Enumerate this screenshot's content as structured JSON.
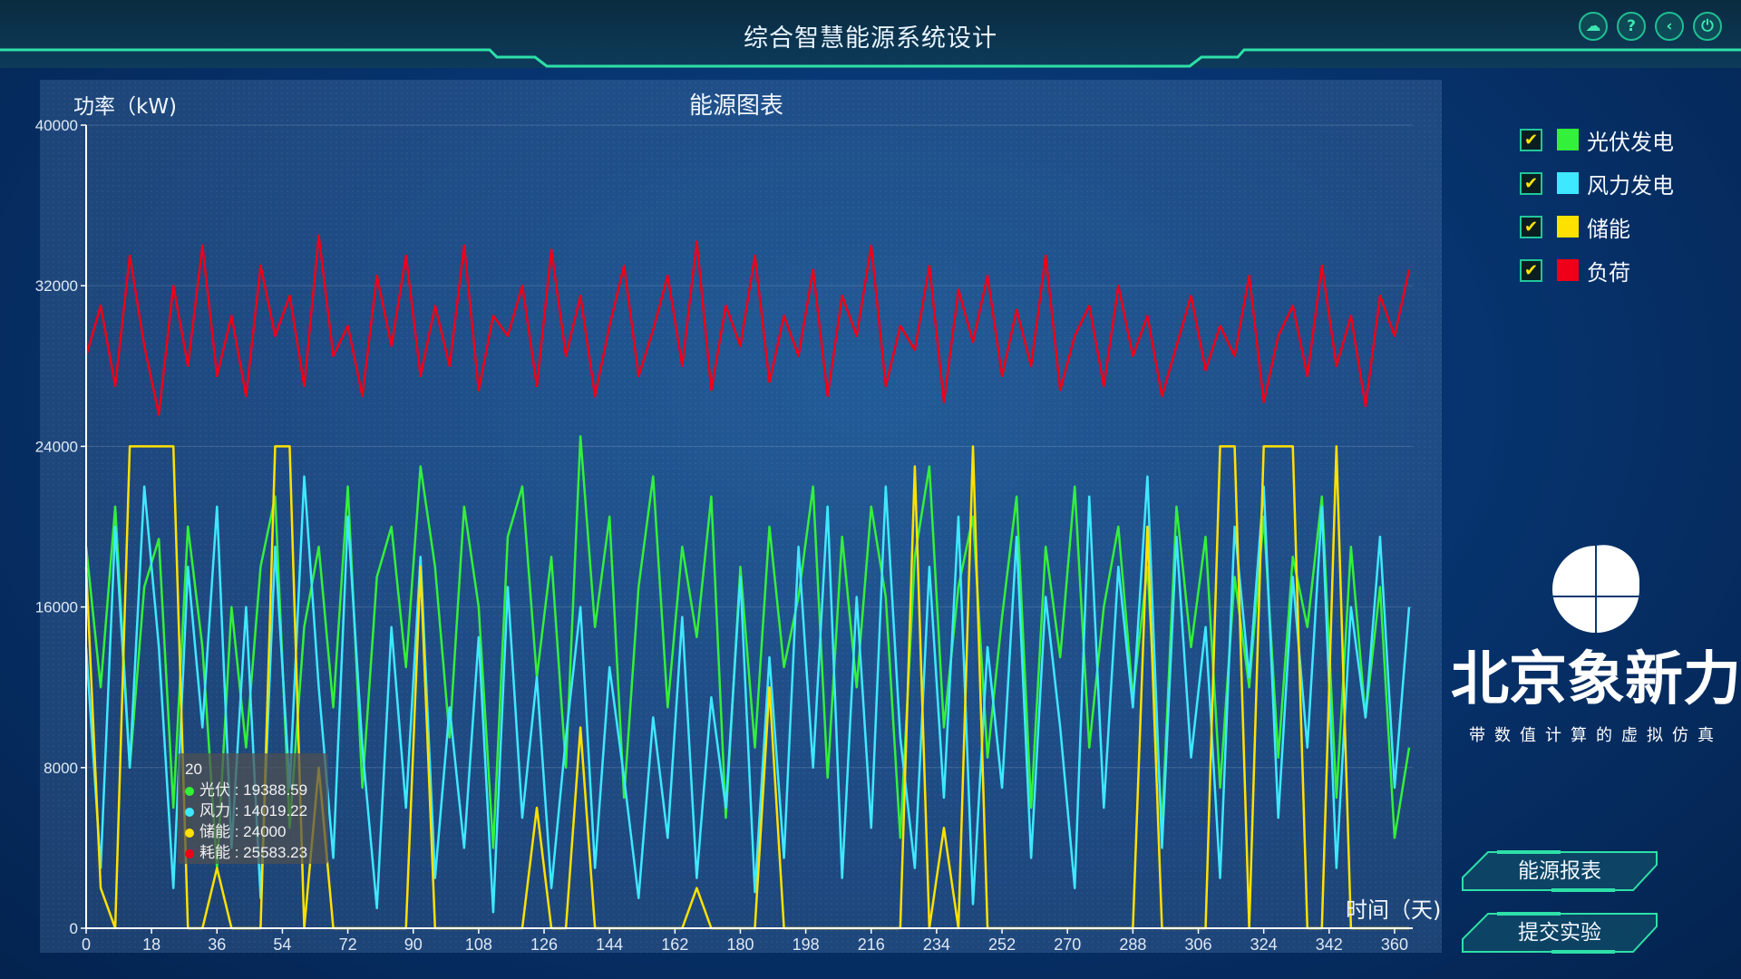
{
  "header": {
    "title": "综合智慧能源系统设计",
    "icons": [
      "cloud-check-icon",
      "help-icon",
      "back-icon",
      "power-icon"
    ],
    "icon_glyphs": [
      "☁",
      "?",
      "‹",
      "⏻"
    ]
  },
  "legend": [
    {
      "label": "光伏发电",
      "color": "#33f03a",
      "checked": true
    },
    {
      "label": "风力发电",
      "color": "#3ee8ff",
      "checked": true
    },
    {
      "label": "储能",
      "color": "#ffe100",
      "checked": true
    },
    {
      "label": "负荷",
      "color": "#f00018",
      "checked": true
    }
  ],
  "checkmark": "✔",
  "buttons": {
    "report": "能源报表",
    "submit": "提交实验"
  },
  "tooltip": {
    "title": "20",
    "rows": [
      {
        "label": "光伏",
        "value": "19388.59",
        "color": "#33f03a"
      },
      {
        "label": "风力",
        "value": "14019.22",
        "color": "#3ee8ff"
      },
      {
        "label": "储能",
        "value": "24000",
        "color": "#ffe100"
      },
      {
        "label": "耗能",
        "value": "25583.23",
        "color": "#f00018"
      }
    ],
    "sep": " : "
  },
  "logo": {
    "name": "北京象新力",
    "tagline": "带数值计算的虚拟仿真"
  },
  "chart_data": {
    "type": "line",
    "title": "能源图表",
    "ylabel": "功率（kW)",
    "xlabel": "时间（天)",
    "ylim": [
      0,
      40000
    ],
    "xlim": [
      0,
      365
    ],
    "yticks": [
      0,
      8000,
      16000,
      24000,
      32000,
      40000
    ],
    "xticks": [
      0,
      18,
      36,
      54,
      72,
      90,
      108,
      126,
      144,
      162,
      180,
      198,
      216,
      234,
      252,
      270,
      288,
      306,
      324,
      342,
      360
    ],
    "grid": "horizontal",
    "x": [
      0,
      4,
      8,
      12,
      16,
      20,
      24,
      28,
      32,
      36,
      40,
      44,
      48,
      52,
      56,
      60,
      64,
      68,
      72,
      76,
      80,
      84,
      88,
      92,
      96,
      100,
      104,
      108,
      112,
      116,
      120,
      124,
      128,
      132,
      136,
      140,
      144,
      148,
      152,
      156,
      160,
      164,
      168,
      172,
      176,
      180,
      184,
      188,
      192,
      196,
      200,
      204,
      208,
      212,
      216,
      220,
      224,
      228,
      232,
      236,
      240,
      244,
      248,
      252,
      256,
      260,
      264,
      268,
      272,
      276,
      280,
      284,
      288,
      292,
      296,
      300,
      304,
      308,
      312,
      316,
      320,
      324,
      328,
      332,
      336,
      340,
      344,
      348,
      352,
      356,
      360,
      364
    ],
    "series": [
      {
        "name": "光伏",
        "color": "#33f03a",
        "values": [
          19000,
          12000,
          21000,
          8000,
          17000,
          19388.59,
          6000,
          20000,
          14000,
          3000,
          16000,
          9000,
          18000,
          21500,
          5000,
          15000,
          19000,
          11000,
          22000,
          7000,
          17500,
          20000,
          13000,
          23000,
          18000,
          9500,
          21000,
          16000,
          4000,
          19500,
          22000,
          12500,
          18500,
          8000,
          24500,
          15000,
          20500,
          6500,
          17000,
          22500,
          11000,
          19000,
          14500,
          21500,
          5500,
          18000,
          9000,
          20000,
          13000,
          16500,
          22000,
          7500,
          19500,
          12000,
          21000,
          16500,
          4500,
          18500,
          23000,
          10000,
          17000,
          20500,
          8500,
          15500,
          21500,
          6000,
          19000,
          13500,
          22000,
          9000,
          16000,
          20000,
          11500,
          18000,
          5000,
          21000,
          14000,
          19500,
          7000,
          17500,
          12000,
          20500,
          8500,
          18500,
          15000,
          21500,
          6500,
          19000,
          10500,
          17000,
          4500,
          9000
        ]
      },
      {
        "name": "风力",
        "color": "#3ee8ff",
        "values": [
          14000,
          3000,
          20000,
          8000,
          22000,
          14019.22,
          2000,
          18000,
          10000,
          21000,
          4000,
          16000,
          1500,
          19000,
          7000,
          22500,
          12000,
          3500,
          20500,
          9000,
          1000,
          15000,
          6000,
          18500,
          2500,
          11000,
          4000,
          14500,
          800,
          17000,
          5500,
          12500,
          2000,
          9500,
          16000,
          3000,
          13000,
          7500,
          1500,
          10500,
          4500,
          15500,
          2500,
          11500,
          6000,
          17500,
          1800,
          13500,
          3500,
          19000,
          8000,
          21000,
          2500,
          16500,
          5000,
          22000,
          9500,
          3000,
          18000,
          6500,
          20500,
          1200,
          14000,
          7000,
          19500,
          3500,
          16500,
          10000,
          2000,
          21500,
          6000,
          18000,
          11000,
          22500,
          4000,
          19500,
          8500,
          15000,
          2500,
          20000,
          12500,
          22000,
          5500,
          17500,
          9000,
          21000,
          3000,
          16000,
          10500,
          19500,
          7000,
          16000
        ]
      },
      {
        "name": "储能",
        "color": "#ffe100",
        "values": [
          18000,
          2000,
          0,
          24000,
          24000,
          24000,
          24000,
          0,
          0,
          3000,
          0,
          0,
          0,
          24000,
          24000,
          0,
          8000,
          0,
          0,
          0,
          0,
          0,
          0,
          18000,
          0,
          0,
          0,
          0,
          0,
          0,
          0,
          6000,
          0,
          0,
          10000,
          0,
          0,
          0,
          0,
          0,
          0,
          0,
          2000,
          0,
          0,
          0,
          0,
          12000,
          0,
          0,
          0,
          0,
          0,
          0,
          0,
          0,
          0,
          23000,
          0,
          5000,
          0,
          24000,
          0,
          0,
          0,
          0,
          0,
          0,
          0,
          0,
          0,
          0,
          0,
          20000,
          0,
          0,
          0,
          0,
          24000,
          24000,
          0,
          24000,
          24000,
          24000,
          0,
          0,
          24000,
          0,
          0,
          0,
          0,
          0
        ]
      },
      {
        "name": "耗能",
        "color": "#f00018",
        "values": [
          28500,
          31000,
          27000,
          33500,
          29000,
          25583.23,
          32000,
          28000,
          34000,
          27500,
          30500,
          26500,
          33000,
          29500,
          31500,
          27000,
          34500,
          28500,
          30000,
          26500,
          32500,
          29000,
          33500,
          27500,
          31000,
          28000,
          34000,
          26800,
          30500,
          29500,
          32000,
          27000,
          33800,
          28500,
          31500,
          26500,
          30000,
          33000,
          27500,
          29800,
          32500,
          28000,
          34200,
          26800,
          31000,
          29000,
          33500,
          27200,
          30500,
          28500,
          32800,
          26500,
          31500,
          29500,
          34000,
          27000,
          30000,
          28800,
          33000,
          26200,
          31800,
          29200,
          32500,
          27500,
          30800,
          28000,
          33500,
          26800,
          29500,
          31000,
          27000,
          32000,
          28500,
          30500,
          26500,
          29000,
          31500,
          27800,
          30000,
          28500,
          32500,
          26200,
          29500,
          31000,
          27500,
          33000,
          28000,
          30500,
          26000,
          31500,
          29500,
          32800
        ]
      }
    ]
  }
}
